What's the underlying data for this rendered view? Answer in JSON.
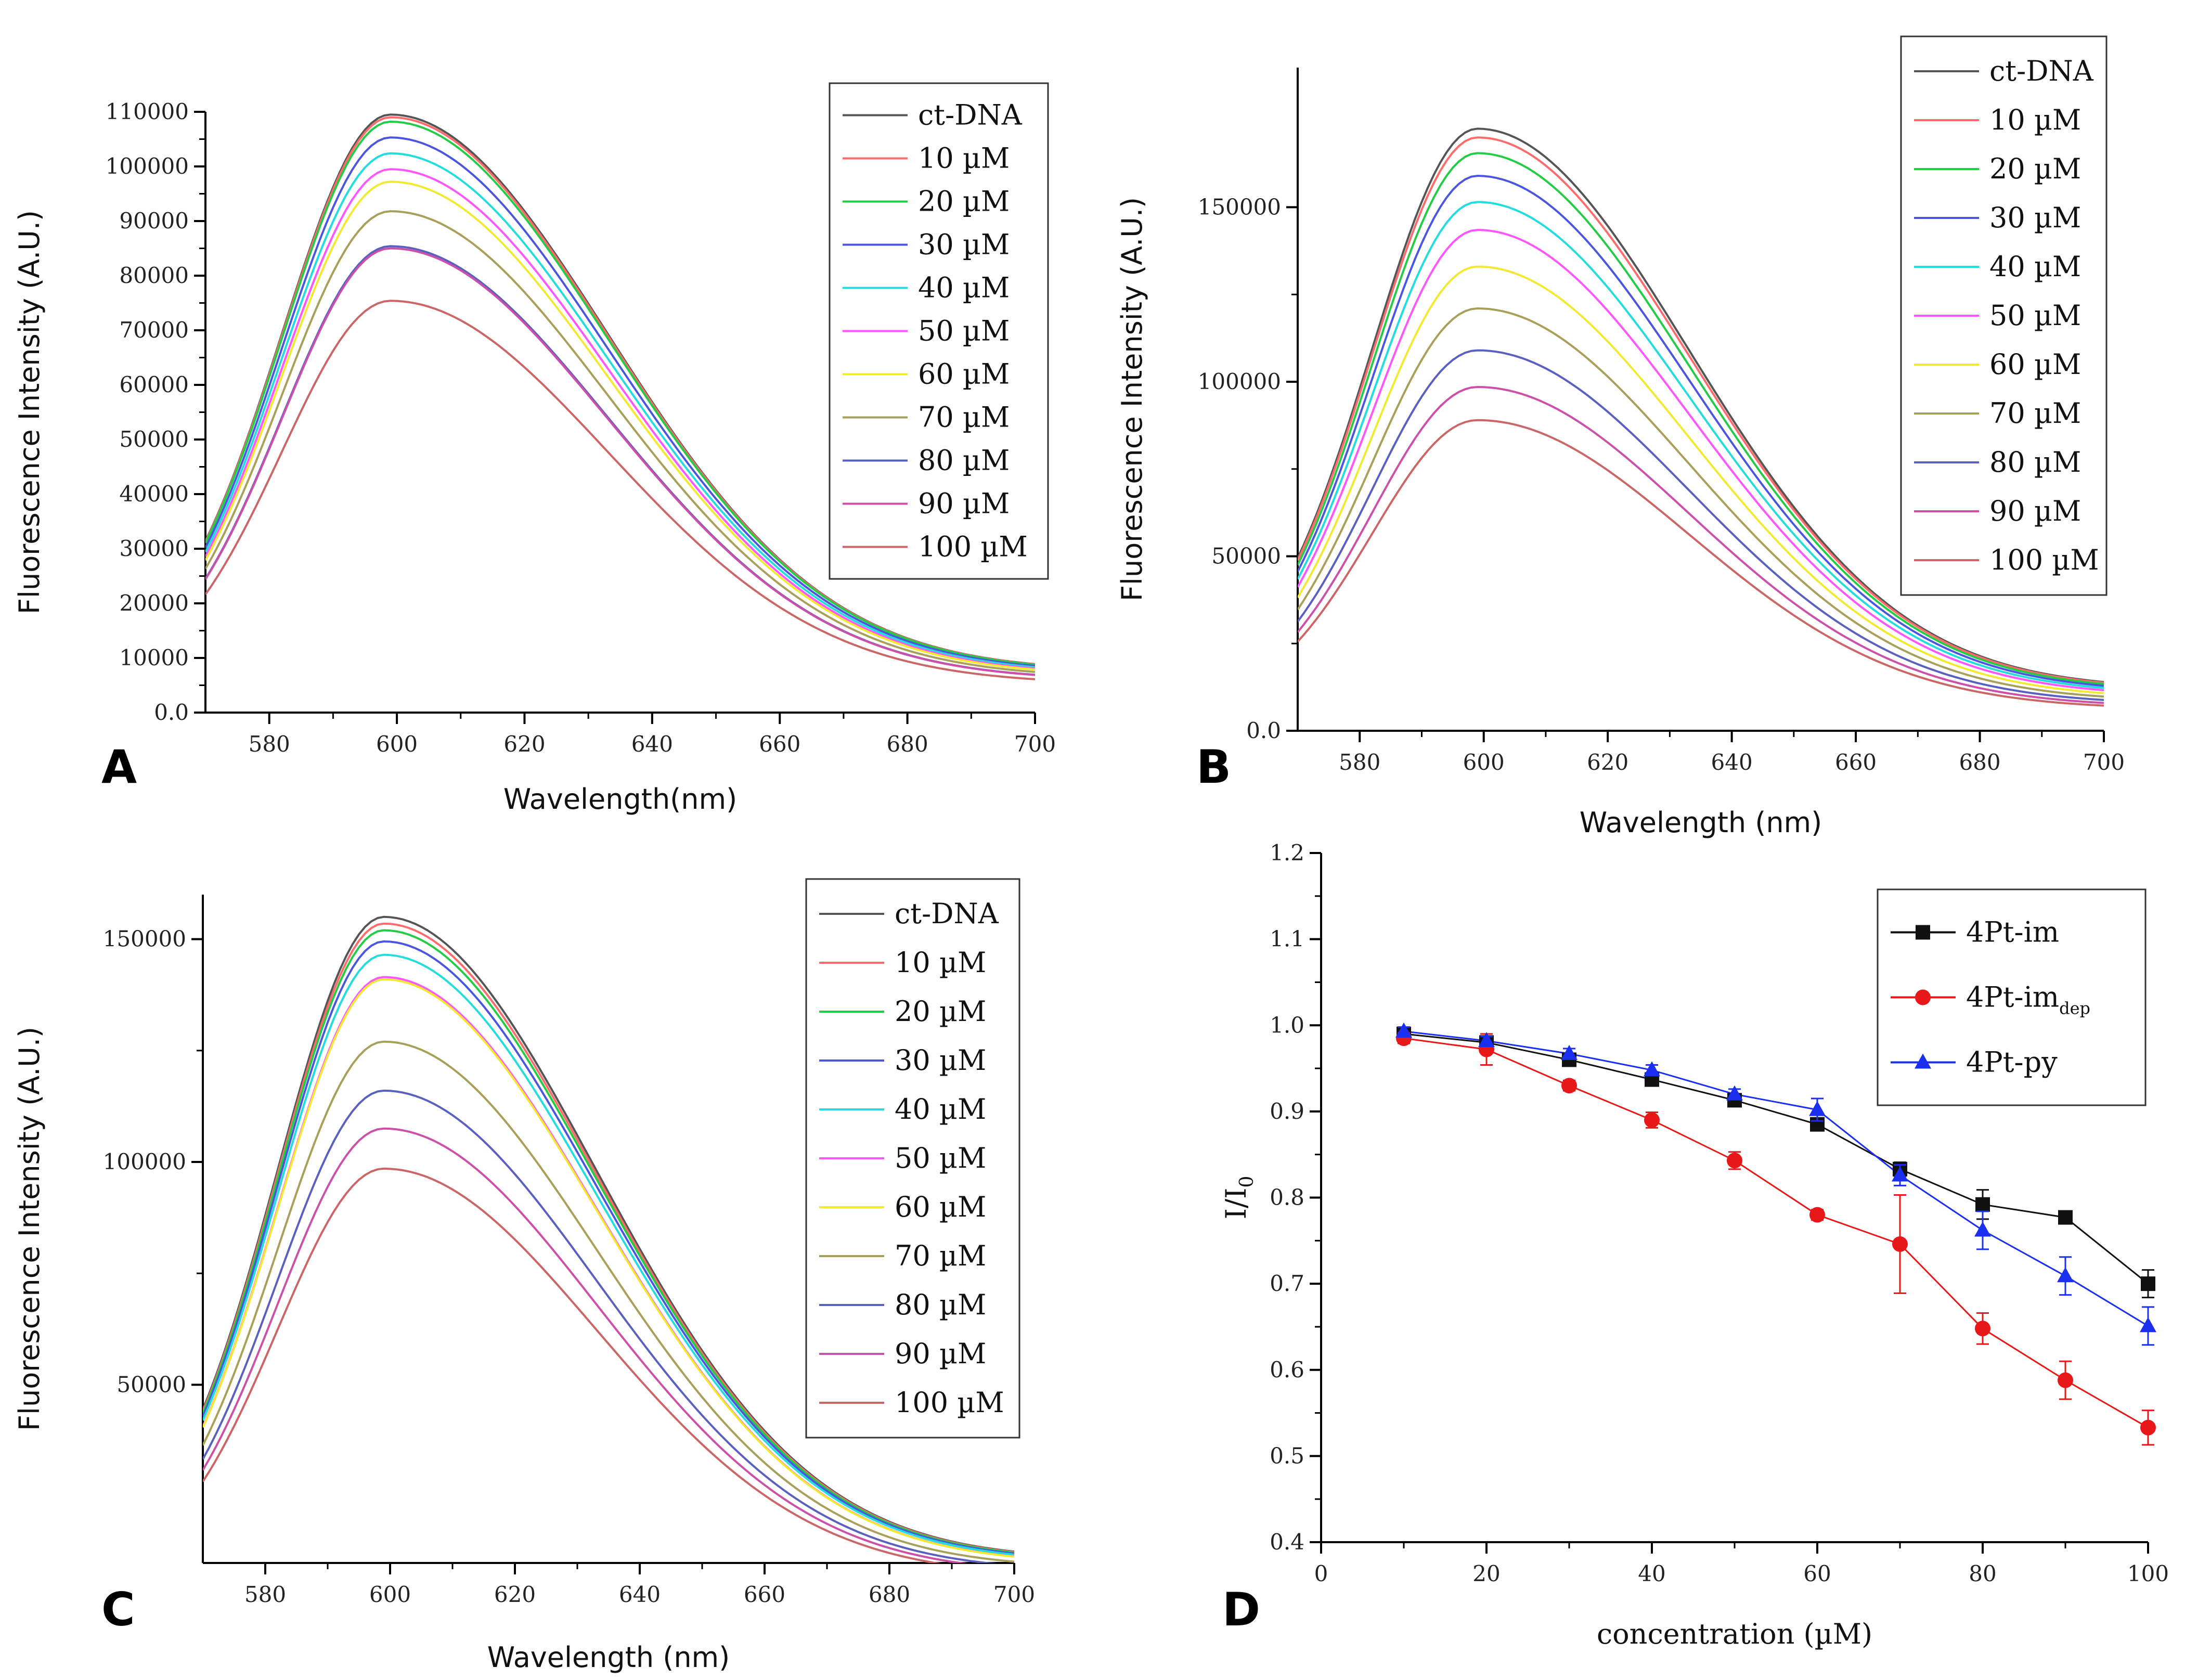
{
  "chart_data": [
    {
      "panel": "A",
      "type": "line",
      "xlabel": "Wavelength(nm)",
      "ylabel": "Fluorescence Intensity (A.U.)",
      "xlim": [
        570,
        700
      ],
      "ylim": [
        0,
        110000
      ],
      "xticks": [
        580,
        600,
        620,
        640,
        660,
        680,
        700
      ],
      "yticks": [
        0,
        10000,
        20000,
        30000,
        40000,
        50000,
        60000,
        70000,
        80000,
        90000,
        100000,
        110000
      ],
      "peak_x": 599,
      "end_ratio": 0.081,
      "legend_position": "top-right",
      "series": [
        {
          "name": "ct-DNA",
          "color": "#555555",
          "peak": 109500
        },
        {
          "name": "10 µM",
          "color": "#ff6a6a",
          "peak": 109000
        },
        {
          "name": "20 µM",
          "color": "#22cc44",
          "peak": 108200
        },
        {
          "name": "30 µM",
          "color": "#4a55e0",
          "peak": 105300
        },
        {
          "name": "40 µM",
          "color": "#22dddd",
          "peak": 102400
        },
        {
          "name": "50 µM",
          "color": "#ff55ff",
          "peak": 99500
        },
        {
          "name": "60 µM",
          "color": "#f2ea30",
          "peak": 97200
        },
        {
          "name": "70 µM",
          "color": "#a8a058",
          "peak": 91800
        },
        {
          "name": "80 µM",
          "color": "#5a60c0",
          "peak": 85400
        },
        {
          "name": "90 µM",
          "color": "#cc4faa",
          "peak": 85000
        },
        {
          "name": "100 µM",
          "color": "#cc6666",
          "peak": 75400
        }
      ]
    },
    {
      "panel": "B",
      "type": "line",
      "xlabel": "Wavelength (nm)",
      "ylabel": "Fluorescence Intensity (A.U.)",
      "xlim": [
        570,
        700
      ],
      "ylim": [
        0,
        190000
      ],
      "xticks": [
        580,
        600,
        620,
        640,
        660,
        680,
        700
      ],
      "yticks": [
        0,
        50000,
        100000,
        150000
      ],
      "peak_x": 599,
      "end_ratio": 0.081,
      "legend_position": "top-right",
      "series": [
        {
          "name": "ct-DNA",
          "color": "#555555",
          "peak": 172500
        },
        {
          "name": "10 µM",
          "color": "#ff6a6a",
          "peak": 170000
        },
        {
          "name": "20 µM",
          "color": "#22cc44",
          "peak": 165500
        },
        {
          "name": "30 µM",
          "color": "#4a55e0",
          "peak": 159000
        },
        {
          "name": "40 µM",
          "color": "#22dddd",
          "peak": 151500
        },
        {
          "name": "50 µM",
          "color": "#ff55ff",
          "peak": 143500
        },
        {
          "name": "60 µM",
          "color": "#f2ea30",
          "peak": 133000
        },
        {
          "name": "70 µM",
          "color": "#a8a058",
          "peak": 121000
        },
        {
          "name": "80 µM",
          "color": "#5a60c0",
          "peak": 109000
        },
        {
          "name": "90 µM",
          "color": "#cc4faa",
          "peak": 98500
        },
        {
          "name": "100 µM",
          "color": "#cc6666",
          "peak": 89000
        }
      ]
    },
    {
      "panel": "C",
      "type": "line",
      "xlabel": "Wavelength (nm)",
      "ylabel": "Fluorescence Intensity (A.U.)",
      "xlim": [
        570,
        700
      ],
      "ylim": [
        10000,
        160000
      ],
      "xticks": [
        580,
        600,
        620,
        640,
        660,
        680,
        700
      ],
      "yticks": [
        50000,
        100000,
        150000
      ],
      "peak_x": 599,
      "end_ratio": 0.081,
      "legend_position": "top-right",
      "series": [
        {
          "name": "ct-DNA",
          "color": "#555555",
          "peak": 155000
        },
        {
          "name": "10 µM",
          "color": "#ff6a6a",
          "peak": 153500
        },
        {
          "name": "20 µM",
          "color": "#22cc44",
          "peak": 152000
        },
        {
          "name": "30 µM",
          "color": "#4a55e0",
          "peak": 149500
        },
        {
          "name": "40 µM",
          "color": "#22dddd",
          "peak": 146500
        },
        {
          "name": "50 µM",
          "color": "#ff55ff",
          "peak": 141500
        },
        {
          "name": "60 µM",
          "color": "#f2ea30",
          "peak": 141000
        },
        {
          "name": "70 µM",
          "color": "#a8a058",
          "peak": 127000
        },
        {
          "name": "80 µM",
          "color": "#5a60c0",
          "peak": 116000
        },
        {
          "name": "90 µM",
          "color": "#cc4faa",
          "peak": 107500
        },
        {
          "name": "100 µM",
          "color": "#cc6666",
          "peak": 98500
        }
      ]
    },
    {
      "panel": "D",
      "type": "line",
      "xlabel": "concentration (µM)",
      "ylabel_main": "I/I",
      "ylabel_sub": "0",
      "xlim": [
        0,
        100
      ],
      "ylim": [
        0.4,
        1.2
      ],
      "xticks": [
        0,
        20,
        40,
        60,
        80,
        100
      ],
      "yticks": [
        0.4,
        0.5,
        0.6,
        0.7,
        0.8,
        0.9,
        1.0,
        1.1,
        1.2
      ],
      "legend_position": "top-right",
      "x": [
        10,
        20,
        30,
        40,
        50,
        60,
        70,
        80,
        90,
        100
      ],
      "series": [
        {
          "name": "4Pt-im",
          "name_sub": "",
          "color": "#111111",
          "marker": "square",
          "values": [
            0.99,
            0.98,
            0.96,
            0.937,
            0.913,
            0.885,
            0.833,
            0.792,
            0.777,
            0.7
          ],
          "errors": [
            0.005,
            0.005,
            0.006,
            0.006,
            0.006,
            0.006,
            0.008,
            0.017,
            0.006,
            0.016
          ]
        },
        {
          "name": "4Pt-im",
          "name_sub": "dep",
          "color": "#e81818",
          "marker": "circle",
          "values": [
            0.985,
            0.972,
            0.93,
            0.89,
            0.843,
            0.78,
            0.746,
            0.648,
            0.588,
            0.533
          ],
          "errors": [
            0.006,
            0.018,
            0.006,
            0.009,
            0.01,
            0.006,
            0.057,
            0.018,
            0.022,
            0.02
          ]
        },
        {
          "name": "4Pt-py",
          "name_sub": "",
          "color": "#1a2ff0",
          "marker": "triangle",
          "values": [
            0.993,
            0.982,
            0.967,
            0.948,
            0.92,
            0.902,
            0.826,
            0.762,
            0.709,
            0.651
          ],
          "errors": [
            0.005,
            0.005,
            0.006,
            0.006,
            0.006,
            0.013,
            0.012,
            0.022,
            0.022,
            0.022
          ]
        }
      ]
    }
  ]
}
